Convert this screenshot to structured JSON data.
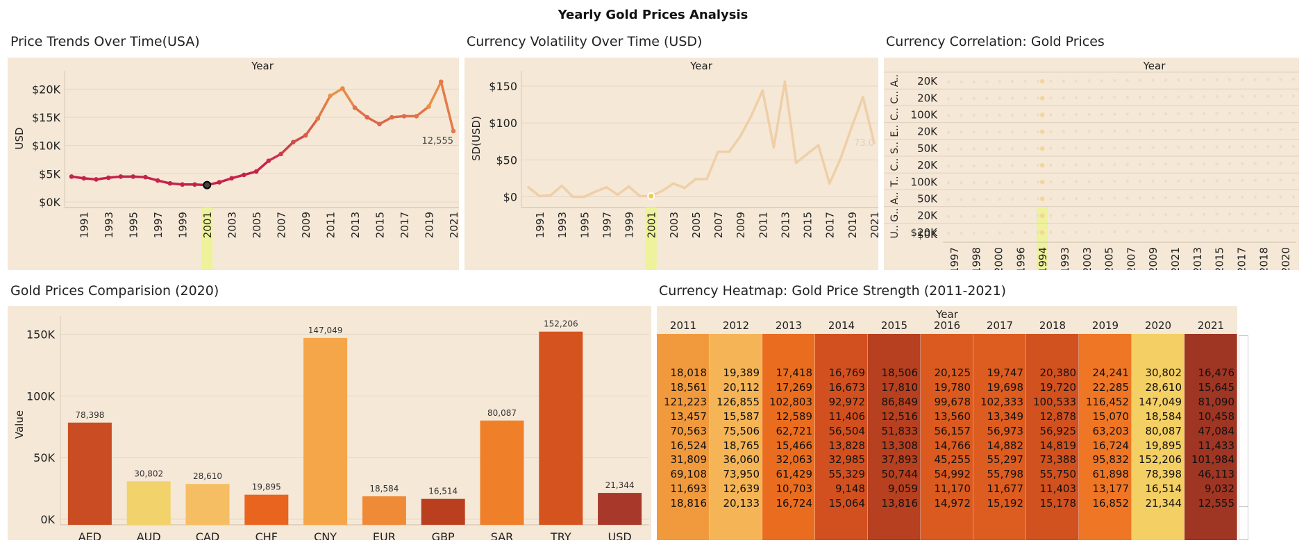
{
  "dashboard_title": "Yearly Gold Prices Analysis",
  "colors": {
    "panel_bg": "#f5e8d7",
    "line_red": "#c4234a",
    "line_orange": "#f0a048",
    "volatility_line": "#efcfa7",
    "highlight": "#eef29a",
    "scatter_dot": "#f4d49a"
  },
  "price_trend": {
    "title": "Price Trends Over Time(USA)",
    "header": "Year",
    "ylabel": "USD",
    "selected_year": "2001",
    "end_label": "12,555",
    "chart_data": {
      "type": "line",
      "x": [
        1990,
        1991,
        1992,
        1993,
        1994,
        1995,
        1996,
        1997,
        1998,
        1999,
        2000,
        2001,
        2002,
        2003,
        2004,
        2005,
        2006,
        2007,
        2008,
        2009,
        2010,
        2011,
        2012,
        2013,
        2014,
        2015,
        2016,
        2017,
        2018,
        2019,
        2020,
        2021
      ],
      "y": [
        4500,
        4200,
        4000,
        4300,
        4500,
        4500,
        4400,
        3800,
        3300,
        3100,
        3100,
        3000,
        3500,
        4200,
        4800,
        5400,
        7300,
        8500,
        10600,
        11800,
        14800,
        18800,
        20100,
        16700,
        15000,
        13800,
        15000,
        15200,
        15200,
        16900,
        21300,
        12555
      ],
      "x_ticks": [
        "1991",
        "1993",
        "1995",
        "1997",
        "1999",
        "2001",
        "2003",
        "2005",
        "2007",
        "2009",
        "2011",
        "2013",
        "2015",
        "2017",
        "2019",
        "2021"
      ],
      "y_ticks": [
        "$0K",
        "$5K",
        "$10K",
        "$15K",
        "$20K"
      ],
      "ylim": [
        0,
        22500
      ]
    }
  },
  "volatility": {
    "title": "Currency Volatility Over Time (USD)",
    "header": "Year",
    "ylabel": "SD(USD)",
    "selected_year": "2001",
    "end_label": "73.0",
    "chart_data": {
      "type": "line",
      "x": [
        1990,
        1991,
        1992,
        1993,
        1994,
        1995,
        1996,
        1997,
        1998,
        1999,
        2000,
        2001,
        2002,
        2003,
        2004,
        2005,
        2006,
        2007,
        2008,
        2009,
        2010,
        2011,
        2012,
        2013,
        2014,
        2015,
        2016,
        2017,
        2018,
        2019,
        2020,
        2021
      ],
      "y": [
        13,
        1,
        2,
        15,
        0,
        0,
        7,
        13,
        3,
        14,
        1,
        1,
        8,
        18,
        12,
        24,
        24,
        61,
        61,
        82,
        110,
        144,
        67,
        156,
        46,
        58,
        70,
        18,
        52,
        95,
        135,
        73
      ],
      "x_ticks": [
        "1991",
        "1993",
        "1995",
        "1997",
        "1999",
        "2001",
        "2003",
        "2005",
        "2007",
        "2009",
        "2011",
        "2013",
        "2015",
        "2017",
        "2019",
        "2021"
      ],
      "y_ticks": [
        "$0",
        "$50",
        "$100",
        "$150"
      ],
      "ylim": [
        -7,
        165
      ]
    }
  },
  "correlation": {
    "title": "Currency Correlation: Gold Prices",
    "header": "Year",
    "rows": [
      {
        "label": "A..",
        "tick": "20K"
      },
      {
        "label": "C..",
        "tick": "20K"
      },
      {
        "label": "C..",
        "tick": "100K"
      },
      {
        "label": "E..",
        "tick": "20K"
      },
      {
        "label": "S..",
        "tick": "50K"
      },
      {
        "label": "C..",
        "tick": "20K"
      },
      {
        "label": "T..",
        "tick": "100K"
      },
      {
        "label": "A..",
        "tick": "50K"
      },
      {
        "label": "G..",
        "tick": "20K"
      },
      {
        "label": "U..",
        "tick": "$20K"
      }
    ],
    "last_row_extra_tick": "$0K",
    "x_ticks": [
      "1997",
      "1998",
      "2000",
      "1996",
      "1994",
      "1993",
      "2003",
      "2005",
      "2007",
      "2009",
      "2021",
      "2013",
      "2015",
      "2017",
      "2018",
      "2020"
    ],
    "chart_data": {
      "type": "scatter",
      "x_categories": [
        "1997",
        "1998",
        "2000",
        "1996",
        "1994",
        "1993",
        "2003",
        "2005",
        "2007",
        "2009",
        "2021",
        "2013",
        "2015",
        "2017",
        "2018",
        "2020"
      ]
    }
  },
  "comparison": {
    "title": "Gold Prices Comparision (2020)",
    "ylabel": "Value",
    "chart_data": {
      "type": "bar",
      "categories": [
        "AED",
        "AUD",
        "CAD",
        "CHF",
        "CNY",
        "EUR",
        "GBP",
        "SAR",
        "TRY",
        "USD"
      ],
      "values": [
        78398,
        30802,
        28610,
        19895,
        147049,
        18584,
        16514,
        80087,
        152206,
        21344
      ],
      "value_labels": [
        "78,398",
        "30,802",
        "28,610",
        "19,895",
        "147,049",
        "18,584",
        "16,514",
        "80,087",
        "152,206",
        "21,344"
      ],
      "colors": [
        "#c94c22",
        "#f2d26a",
        "#f5be62",
        "#e9641f",
        "#f5a648",
        "#ef8a37",
        "#ba3f1f",
        "#ef8029",
        "#d4531f",
        "#a7382a"
      ],
      "y_ticks": [
        "0K",
        "50K",
        "100K",
        "150K"
      ],
      "ylim": [
        0,
        165000
      ]
    }
  },
  "heatmap": {
    "title": "Currency Heatmap: Gold Price Strength (2011-2021)",
    "header": "Year",
    "chart_data": {
      "type": "heatmap",
      "columns": [
        "2011",
        "2012",
        "2013",
        "2014",
        "2015",
        "2016",
        "2017",
        "2018",
        "2019",
        "2020",
        "2021"
      ],
      "column_colors": [
        "#f19a3d",
        "#f5b557",
        "#ea6d1f",
        "#d2501f",
        "#b6401f",
        "#da5a1f",
        "#dd5c1f",
        "#d1511f",
        "#ef7625",
        "#f4cf63",
        "#9f3523"
      ],
      "rows": [
        [
          "18,018",
          "19,389",
          "17,418",
          "16,769",
          "18,506",
          "20,125",
          "19,747",
          "20,380",
          "24,241",
          "30,802",
          "16,476"
        ],
        [
          "18,561",
          "20,112",
          "17,269",
          "16,673",
          "17,810",
          "19,780",
          "19,698",
          "19,720",
          "22,285",
          "28,610",
          "15,645"
        ],
        [
          "121,223",
          "126,855",
          "102,803",
          "92,972",
          "86,849",
          "99,678",
          "102,333",
          "100,533",
          "116,452",
          "147,049",
          "81,090"
        ],
        [
          "13,457",
          "15,587",
          "12,589",
          "11,406",
          "12,516",
          "13,560",
          "13,349",
          "12,878",
          "15,070",
          "18,584",
          "10,458"
        ],
        [
          "70,563",
          "75,506",
          "62,721",
          "56,504",
          "51,833",
          "56,157",
          "56,973",
          "56,925",
          "63,203",
          "80,087",
          "47,084"
        ],
        [
          "16,524",
          "18,765",
          "15,466",
          "13,828",
          "13,308",
          "14,766",
          "14,882",
          "14,819",
          "16,724",
          "19,895",
          "11,433"
        ],
        [
          "31,809",
          "36,060",
          "32,063",
          "32,985",
          "37,893",
          "45,255",
          "55,297",
          "73,388",
          "95,832",
          "152,206",
          "101,984"
        ],
        [
          "69,108",
          "73,950",
          "61,429",
          "55,329",
          "50,744",
          "54,992",
          "55,798",
          "55,750",
          "61,898",
          "78,398",
          "46,113"
        ],
        [
          "11,693",
          "12,639",
          "10,703",
          "9,148",
          "9,059",
          "11,170",
          "11,677",
          "11,403",
          "13,177",
          "16,514",
          "9,032"
        ],
        [
          "18,816",
          "20,133",
          "16,724",
          "15,064",
          "13,816",
          "14,972",
          "15,192",
          "15,178",
          "16,852",
          "21,344",
          "12,555"
        ]
      ]
    }
  }
}
